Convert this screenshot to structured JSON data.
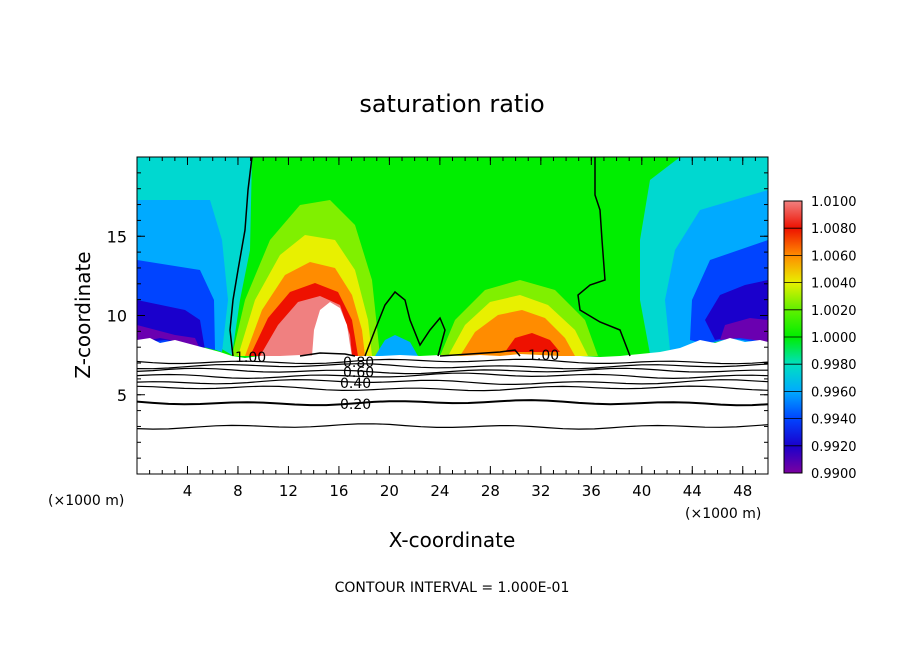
{
  "chart_data": {
    "type": "heatmap",
    "title": "saturation ratio",
    "xlabel": "X-coordinate",
    "ylabel": "Z-coordinate",
    "x_unit_label_left": "(×1000 m)",
    "x_unit_label_right": "(×1000 m)",
    "footer": "CONTOUR INTERVAL = 1.000E-01",
    "xlim": [
      0,
      50
    ],
    "ylim": [
      0,
      20
    ],
    "x_ticks": [
      "4",
      "8",
      "12",
      "16",
      "20",
      "24",
      "28",
      "32",
      "36",
      "40",
      "44",
      "48"
    ],
    "y_ticks": [
      "5",
      "10",
      "15"
    ],
    "colorbar": {
      "range": [
        0.99,
        1.01
      ],
      "labels": [
        "1.0100",
        "1.0080",
        "1.0060",
        "1.0040",
        "1.0020",
        "1.0000",
        "0.9980",
        "0.9960",
        "0.9940",
        "0.9920",
        "0.9900"
      ]
    },
    "contour_labels": [
      {
        "text": "1.00",
        "x": 9.5,
        "z": 7.3
      },
      {
        "text": "1.00",
        "x": 32.0,
        "z": 7.3
      },
      {
        "text": "0.80",
        "x": 17.7,
        "z": 6.9
      },
      {
        "text": "0.60",
        "x": 17.7,
        "z": 6.3
      },
      {
        "text": "0.40",
        "x": 17.5,
        "z": 5.6
      },
      {
        "text": "0.20",
        "x": 17.5,
        "z": 4.3
      }
    ],
    "colors": {
      "low": "#7b00a0",
      "mid": "#00ee00",
      "high": "#f08080",
      "contour": "#000000"
    }
  }
}
